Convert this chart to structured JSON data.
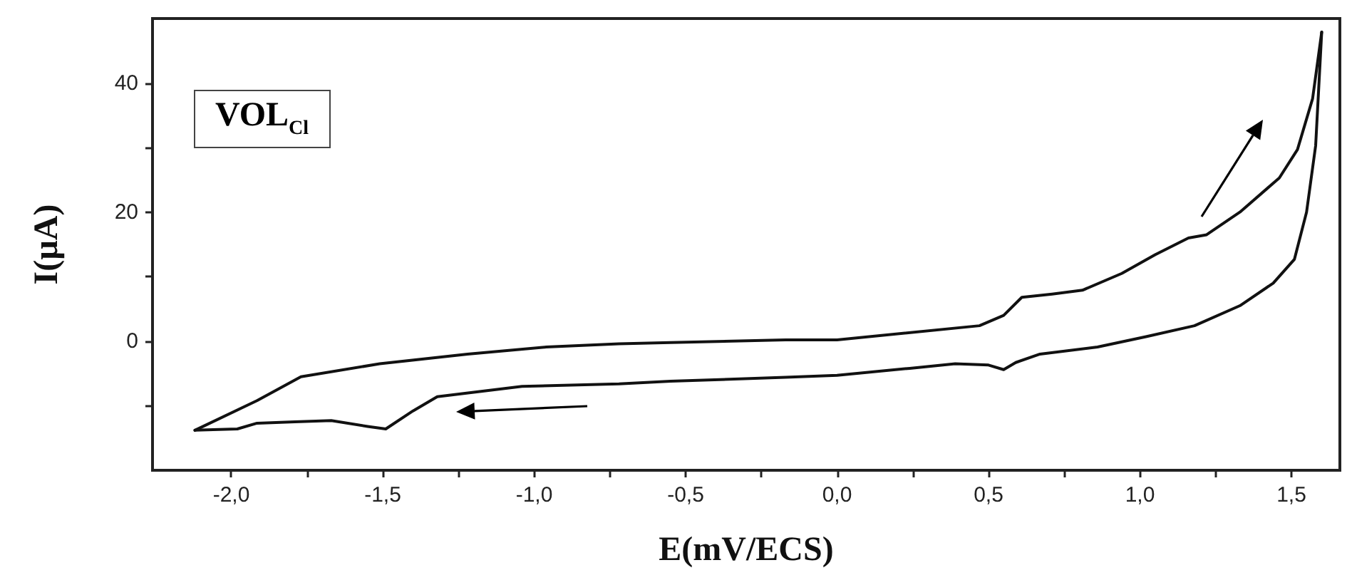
{
  "chart_data": {
    "type": "line",
    "xlabel": "E(mV/ECS)",
    "ylabel": "I(µA)",
    "annotations": [
      "VOL$_{Cl}$"
    ],
    "xlim": [
      -2.26,
      1.66
    ],
    "ylim": [
      -20,
      50
    ],
    "xticks": [
      {
        "value": -2,
        "label": "-2,0"
      },
      {
        "value": -1.75,
        "label": null
      },
      {
        "value": -1.5,
        "label": "-1,5"
      },
      {
        "value": -1.25,
        "label": null
      },
      {
        "value": -1,
        "label": "-1,0"
      },
      {
        "value": -0.75,
        "label": null
      },
      {
        "value": -0.5,
        "label": "-0,5"
      },
      {
        "value": -0.25,
        "label": null
      },
      {
        "value": 0,
        "label": "0,0"
      },
      {
        "value": 0.25,
        "label": null
      },
      {
        "value": 0.5,
        "label": "0,5"
      },
      {
        "value": 0.75,
        "label": null
      },
      {
        "value": 1,
        "label": "1,0"
      },
      {
        "value": 1.25,
        "label": null
      },
      {
        "value": 1.5,
        "label": "1,5"
      }
    ],
    "yticks": [
      {
        "value": -10,
        "label": null
      },
      0,
      {
        "value": 10,
        "label": null
      },
      20,
      {
        "value": 30,
        "label": null
      },
      40
    ],
    "grid": false,
    "marker": "none",
    "line_style": "solid",
    "series": [
      {
        "color": "#111111",
        "x": [
          -2.12,
          -1.915,
          -1.77,
          -1.51,
          -1.22,
          -0.96,
          -0.72,
          -0.55,
          -0.17,
          0,
          0.47,
          0.55,
          0.61,
          0.71,
          0.81,
          0.94,
          1.05,
          1.16,
          1.22,
          1.33,
          1.46,
          1.52,
          1.57,
          1.6
        ],
        "values": [
          -13.8,
          -9.2,
          -5.5,
          -3.5,
          -2.0,
          -0.9,
          -0.4,
          -0.2,
          0.2,
          0.2,
          2.4,
          4.0,
          6.8,
          7.3,
          7.9,
          10.5,
          13.4,
          16.0,
          16.5,
          20.0,
          25.3,
          29.7,
          37.6,
          47.9
        ]
      },
      {
        "color": "#111111",
        "x": [
          1.6,
          1.58,
          1.55,
          1.51,
          1.44,
          1.33,
          1.18,
          1.02,
          0.86,
          0.67,
          0.59,
          0.55,
          0.5,
          0.39,
          0.24,
          0,
          -0.17,
          -0.55,
          -0.72,
          -1.04,
          -1.32,
          -1.4,
          -1.49,
          -1.55,
          -1.67,
          -1.79,
          -1.915,
          -1.98,
          -2.12
        ],
        "values": [
          47.9,
          30.3,
          20.0,
          12.7,
          9.0,
          5.5,
          2.4,
          0.7,
          -0.9,
          -2.0,
          -3.3,
          -4.4,
          -3.7,
          -3.5,
          -4.2,
          -5.3,
          -5.6,
          -6.2,
          -6.6,
          -7.0,
          -8.6,
          -10.8,
          -13.6,
          -13.2,
          -12.3,
          -12.5,
          -12.7,
          -13.6,
          -13.8
        ]
      }
    ]
  }
}
